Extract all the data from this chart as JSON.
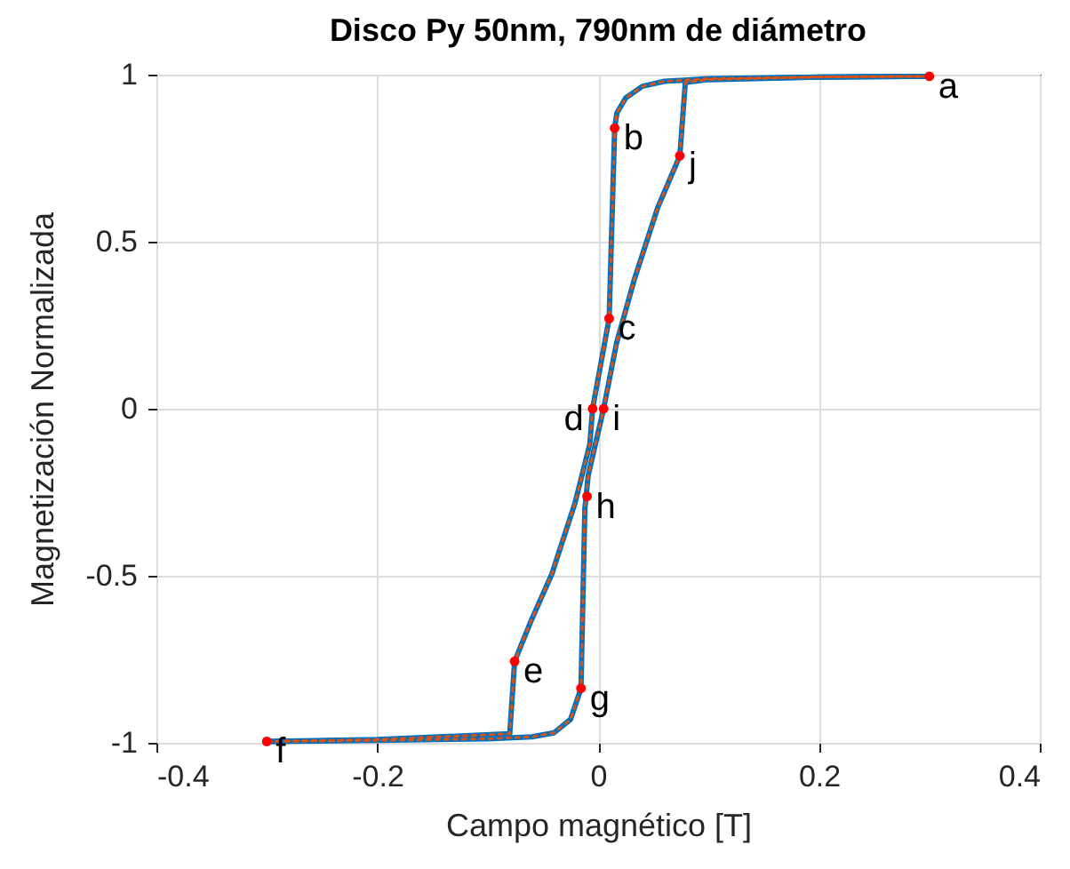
{
  "chart_data": {
    "type": "line",
    "title": "Disco Py 50nm, 790nm de diámetro",
    "xlabel": "Campo magnético [T]",
    "ylabel": "Magnetización Normalizada",
    "xlim": [
      -0.4,
      0.4
    ],
    "xticks": [
      -0.4,
      -0.2,
      0,
      0.2,
      0.4
    ],
    "ylim": [
      -1,
      1
    ],
    "yticks": [
      -1,
      -0.5,
      0,
      0.5,
      1
    ],
    "grid": true,
    "series": [
      {
        "color": "#0072bd",
        "line_style": "solid",
        "x": [
          0.3,
          0.2,
          0.1,
          0.06,
          0.04,
          0.025,
          0.017,
          0.015,
          0.01,
          -0.005,
          -0.0075,
          -0.021,
          -0.042,
          -0.061,
          -0.0756,
          -0.08,
          -0.2,
          -0.3
        ],
        "values": [
          0.995,
          0.993,
          0.988,
          0.98,
          0.965,
          0.93,
          0.885,
          0.84,
          0.27,
          0,
          -0.106,
          -0.283,
          -0.496,
          -0.637,
          -0.756,
          -0.973,
          -0.99,
          -0.996
        ]
      },
      {
        "color": "#0072bd",
        "line_style": "solid",
        "x": [
          -0.3,
          -0.2,
          -0.1,
          -0.06,
          -0.04,
          -0.025,
          -0.0155,
          -0.012,
          -0.009,
          0.005,
          0.0166,
          0.033,
          0.054,
          0.074,
          0.079,
          0.1,
          0.2,
          0.3
        ],
        "values": [
          -0.996,
          -0.993,
          -0.988,
          -0.982,
          -0.97,
          -0.93,
          -0.837,
          -0.3,
          -0.2,
          0,
          0.195,
          0.389,
          0.602,
          0.757,
          0.977,
          0.985,
          0.993,
          0.995
        ]
      },
      {
        "color": "#d95319",
        "line_style": "dotted",
        "x": [
          0.3,
          0.2,
          0.1,
          0.06,
          0.04,
          0.025,
          0.017,
          0.015,
          0.01,
          -0.005,
          -0.0075,
          -0.021,
          -0.042,
          -0.061,
          -0.0756,
          -0.08,
          -0.2,
          -0.3
        ],
        "values": [
          0.995,
          0.993,
          0.988,
          0.98,
          0.965,
          0.93,
          0.885,
          0.84,
          0.27,
          0,
          -0.106,
          -0.283,
          -0.496,
          -0.637,
          -0.756,
          -0.973,
          -0.99,
          -0.996
        ]
      },
      {
        "color": "#d95319",
        "line_style": "dotted",
        "x": [
          -0.3,
          -0.2,
          -0.1,
          -0.06,
          -0.04,
          -0.025,
          -0.0155,
          -0.012,
          -0.009,
          0.005,
          0.0166,
          0.033,
          0.054,
          0.074,
          0.079,
          0.1,
          0.2,
          0.3
        ],
        "values": [
          -0.996,
          -0.993,
          -0.988,
          -0.982,
          -0.97,
          -0.93,
          -0.837,
          -0.3,
          -0.2,
          0,
          0.195,
          0.389,
          0.602,
          0.757,
          0.977,
          0.985,
          0.993,
          0.995
        ]
      },
      {
        "type": "scatter",
        "color": "#ff0000",
        "marker": "circle",
        "x": [
          0.3,
          0.015,
          0.01,
          -0.005,
          -0.0756,
          -0.3,
          -0.0155,
          -0.01,
          0.005,
          0.074
        ],
        "values": [
          0.995,
          0.84,
          0.27,
          0,
          -0.756,
          -0.996,
          -0.837,
          -0.262,
          0,
          0.757
        ]
      }
    ],
    "annotations": [
      {
        "text": "a",
        "x": 0.3,
        "y": 0.995
      },
      {
        "text": "b",
        "x": 0.015,
        "y": 0.84
      },
      {
        "text": "c",
        "x": 0.01,
        "y": 0.27
      },
      {
        "text": "d",
        "x": -0.005,
        "y": 0
      },
      {
        "text": "e",
        "x": -0.0756,
        "y": -0.756
      },
      {
        "text": "f",
        "x": -0.3,
        "y": -0.996
      },
      {
        "text": "g",
        "x": -0.0155,
        "y": -0.837
      },
      {
        "text": "h",
        "x": -0.01,
        "y": -0.262
      },
      {
        "text": "i",
        "x": 0.005,
        "y": 0
      },
      {
        "text": "j",
        "x": 0.074,
        "y": 0.757
      }
    ]
  }
}
